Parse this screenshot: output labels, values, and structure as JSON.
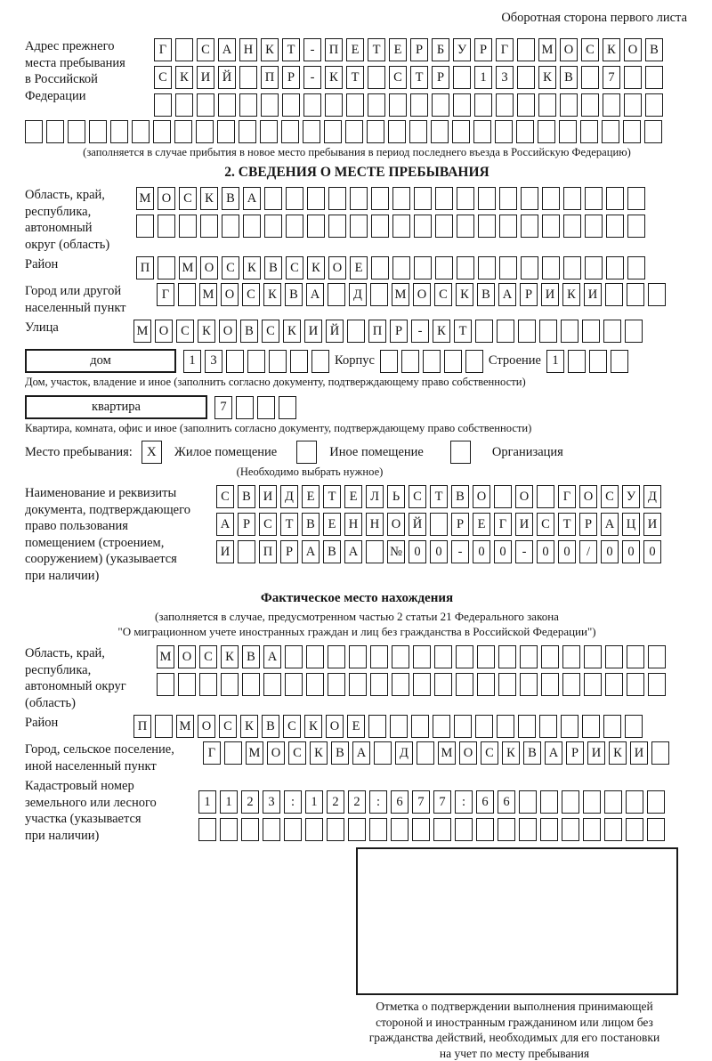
{
  "page": {
    "header_note": "Оборотная сторона первого листа"
  },
  "prev_address": {
    "label_lines": [
      "Адрес прежнего",
      "места пребывания",
      "в Российской",
      "Федерации"
    ],
    "rows": [
      [
        "Г",
        "",
        "С",
        "А",
        "Н",
        "К",
        "Т",
        "-",
        "П",
        "Е",
        "Т",
        "Е",
        "Р",
        "Б",
        "У",
        "Р",
        "Г",
        "",
        "М",
        "О",
        "С",
        "К",
        "О",
        "В"
      ],
      [
        "С",
        "К",
        "И",
        "Й",
        "",
        "П",
        "Р",
        "-",
        "К",
        "Т",
        "",
        "С",
        "Т",
        "Р",
        "",
        "1",
        "3",
        "",
        "К",
        "В",
        "",
        "7",
        "",
        ""
      ],
      [
        "",
        "",
        "",
        "",
        "",
        "",
        "",
        "",
        "",
        "",
        "",
        "",
        "",
        "",
        "",
        "",
        "",
        "",
        "",
        "",
        "",
        "",
        "",
        ""
      ]
    ],
    "extra_row": [
      "",
      "",
      "",
      "",
      "",
      "",
      "",
      "",
      "",
      "",
      "",
      "",
      "",
      "",
      "",
      "",
      "",
      "",
      "",
      "",
      "",
      "",
      "",
      "",
      "",
      "",
      "",
      "",
      "",
      ""
    ],
    "caption": "(заполняется в случае прибытия в новое место пребывания в период последнего въезда в Российскую Федерацию)"
  },
  "section2": {
    "title": "2. СВЕДЕНИЯ О МЕСТЕ ПРЕБЫВАНИЯ",
    "oblast": {
      "label_lines": [
        "Область, край,",
        "республика,",
        "автономный",
        "округ (область)"
      ],
      "rows": [
        [
          "М",
          "О",
          "С",
          "К",
          "В",
          "А",
          "",
          "",
          "",
          "",
          "",
          "",
          "",
          "",
          "",
          "",
          "",
          "",
          "",
          "",
          "",
          "",
          "",
          ""
        ],
        [
          "",
          "",
          "",
          "",
          "",
          "",
          "",
          "",
          "",
          "",
          "",
          "",
          "",
          "",
          "",
          "",
          "",
          "",
          "",
          "",
          "",
          "",
          "",
          ""
        ]
      ]
    },
    "raion": {
      "label": "Район",
      "cells": [
        "П",
        "",
        "М",
        "О",
        "С",
        "К",
        "В",
        "С",
        "К",
        "О",
        "Е",
        "",
        "",
        "",
        "",
        "",
        "",
        "",
        "",
        "",
        "",
        "",
        "",
        ""
      ]
    },
    "gorod": {
      "label_lines": [
        "Город или другой",
        "населенный пункт"
      ],
      "cells": [
        "Г",
        "",
        "М",
        "О",
        "С",
        "К",
        "В",
        "А",
        "",
        "Д",
        "",
        "М",
        "О",
        "С",
        "К",
        "В",
        "А",
        "Р",
        "И",
        "К",
        "И",
        "",
        "",
        ""
      ]
    },
    "ulitsa": {
      "label": "Улица",
      "cells": [
        "М",
        "О",
        "С",
        "К",
        "О",
        "В",
        "С",
        "К",
        "И",
        "Й",
        "",
        "П",
        "Р",
        "-",
        "К",
        "Т",
        "",
        "",
        "",
        "",
        "",
        "",
        "",
        ""
      ]
    },
    "dom": {
      "box_label": "дом",
      "cells": [
        "1",
        "3",
        "",
        "",
        "",
        "",
        ""
      ],
      "korpus_label": "Корпус",
      "korpus_cells": [
        "",
        "",
        "",
        "",
        ""
      ],
      "stroenie_label": "Строение",
      "stroenie_cells": [
        "1",
        "",
        "",
        ""
      ]
    },
    "dom_caption": "Дом, участок, владение и иное (заполнить согласно документу, подтверждающему право собственности)",
    "kvartira": {
      "box_label": "квартира",
      "cells": [
        "7",
        "",
        "",
        ""
      ]
    },
    "kvartira_caption": "Квартира, комната, офис и иное (заполнить согласно документу, подтверждающему право собственности)",
    "mesto": {
      "label": "Место пребывания:",
      "options": [
        {
          "label": "Жилое помещение",
          "mark": "X"
        },
        {
          "label": "Иное помещение",
          "mark": ""
        },
        {
          "label": "Организация",
          "mark": ""
        }
      ],
      "caption": "(Необходимо выбрать нужное)"
    },
    "document": {
      "label_lines": [
        "Наименование и реквизиты",
        "документа, подтверждающего",
        "право пользования",
        "помещением (строением,",
        "сооружением) (указывается",
        "при наличии)"
      ],
      "rows": [
        [
          "С",
          "В",
          "И",
          "Д",
          "Е",
          "Т",
          "Е",
          "Л",
          "Ь",
          "С",
          "Т",
          "В",
          "О",
          "",
          "О",
          "",
          "Г",
          "О",
          "С",
          "У",
          "Д"
        ],
        [
          "А",
          "Р",
          "С",
          "Т",
          "В",
          "Е",
          "Н",
          "Н",
          "О",
          "Й",
          "",
          "Р",
          "Е",
          "Г",
          "И",
          "С",
          "Т",
          "Р",
          "А",
          "Ц",
          "И"
        ],
        [
          "И",
          "",
          "П",
          "Р",
          "А",
          "В",
          "А",
          "",
          "№",
          "0",
          "0",
          "-",
          "0",
          "0",
          "-",
          "0",
          "0",
          "/",
          "0",
          "0",
          "0"
        ]
      ]
    }
  },
  "fact_section": {
    "title": "Фактическое место нахождения",
    "caption_lines": [
      "(заполняется в случае, предусмотренном частью 2 статьи 21 Федерального закона",
      "\"О миграционном учете иностранных граждан и лиц без гражданства в Российской Федерации\")"
    ],
    "oblast": {
      "label_lines": [
        "Область, край,",
        "республика,",
        "автономный округ",
        "(область)"
      ],
      "rows": [
        [
          "М",
          "О",
          "С",
          "К",
          "В",
          "А",
          "",
          "",
          "",
          "",
          "",
          "",
          "",
          "",
          "",
          "",
          "",
          "",
          "",
          "",
          "",
          "",
          "",
          ""
        ],
        [
          "",
          "",
          "",
          "",
          "",
          "",
          "",
          "",
          "",
          "",
          "",
          "",
          "",
          "",
          "",
          "",
          "",
          "",
          "",
          "",
          "",
          "",
          "",
          ""
        ]
      ]
    },
    "raion": {
      "label": "Район",
      "cells": [
        "П",
        "",
        "М",
        "О",
        "С",
        "К",
        "В",
        "С",
        "К",
        "О",
        "Е",
        "",
        "",
        "",
        "",
        "",
        "",
        "",
        "",
        "",
        "",
        "",
        "",
        ""
      ]
    },
    "gorod": {
      "label_lines": [
        "Город, сельское поселение,",
        "иной населенный пункт"
      ],
      "cells": [
        "Г",
        "",
        "М",
        "О",
        "С",
        "К",
        "В",
        "А",
        "",
        "Д",
        "",
        "М",
        "О",
        "С",
        "К",
        "В",
        "А",
        "Р",
        "И",
        "К",
        "И",
        ""
      ]
    },
    "kadastr": {
      "label_lines": [
        "Кадастровый номер",
        "земельного или лесного",
        "участка (указывается",
        "при наличии)"
      ],
      "rows": [
        [
          "1",
          "1",
          "2",
          "3",
          ":",
          "1",
          "2",
          "2",
          ":",
          "6",
          "7",
          "7",
          ":",
          "6",
          "6",
          "",
          "",
          "",
          "",
          "",
          "",
          ""
        ],
        [
          "",
          "",
          "",
          "",
          "",
          "",
          "",
          "",
          "",
          "",
          "",
          "",
          "",
          "",
          "",
          "",
          "",
          "",
          "",
          "",
          "",
          ""
        ]
      ]
    },
    "stamp_caption_lines": [
      "Отметка о подтверждении выполнения принимающей",
      "стороной и иностранным гражданином или лицом без",
      "гражданства действий, необходимых для его постановки",
      "на учет по месту пребывания"
    ]
  }
}
